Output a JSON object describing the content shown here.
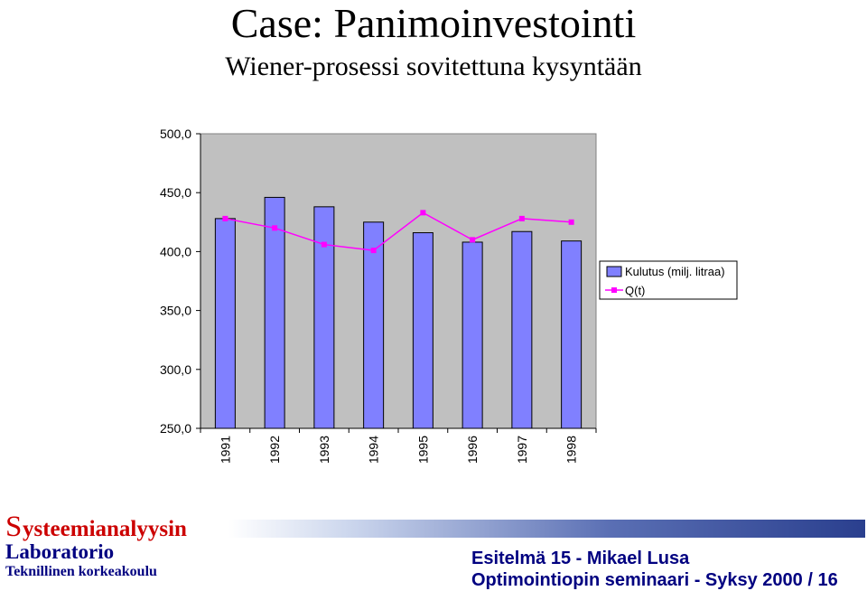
{
  "slide": {
    "title": "Case: Panimoinvestointi",
    "subtitle": "Wiener-prosessi sovitettuna kysyntään"
  },
  "chart_data": {
    "type": "bar",
    "categories": [
      "1991",
      "1992",
      "1993",
      "1994",
      "1995",
      "1996",
      "1997",
      "1998"
    ],
    "series": [
      {
        "name": "Kulutus (milj. litraa)",
        "kind": "bar",
        "values": [
          428,
          446,
          438,
          425,
          416,
          408,
          417,
          409
        ]
      },
      {
        "name": "Q(t)",
        "kind": "line",
        "values": [
          428,
          420,
          406,
          401,
          433,
          410,
          428,
          425
        ]
      }
    ],
    "ylim": [
      250,
      500
    ],
    "yticks": [
      "500,0",
      "450,0",
      "400,0",
      "350,0",
      "300,0",
      "250,0"
    ],
    "ytick_values": [
      500,
      450,
      400,
      350,
      300,
      250
    ],
    "grid": false,
    "legend": "right",
    "colors": {
      "bar": "#8080ff",
      "line": "#ff00ff",
      "plot_bg": "#c0c0c0"
    }
  },
  "footer": {
    "logo_initial": "S",
    "logo_rest": "ysteemianalyysin",
    "lab": "Laboratorio",
    "school": "Teknillinen korkeakoulu",
    "line1": "Esitelmä 15 - Mikael Lusa",
    "line2": "Optimointiopin seminaari - Syksy 2000 / 16"
  }
}
